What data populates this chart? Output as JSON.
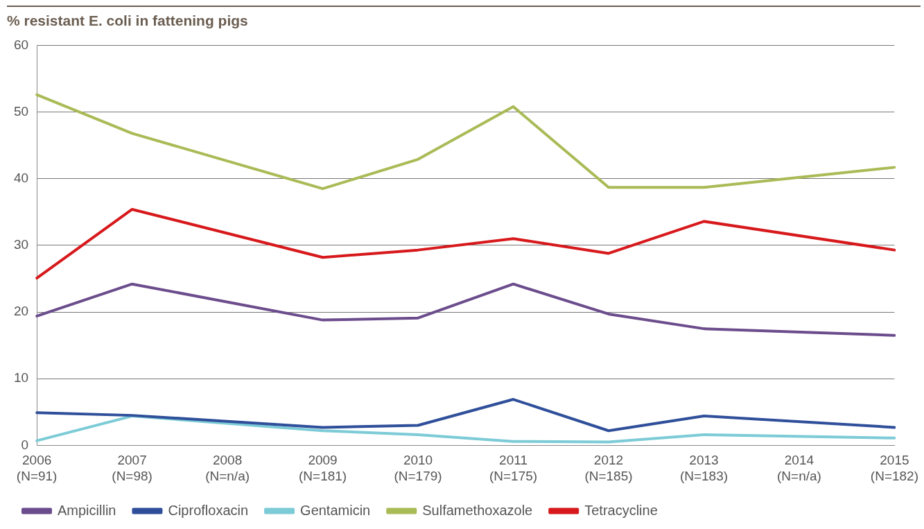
{
  "chart_data": {
    "type": "line",
    "title": "% resistant E. coli in fattening pigs",
    "categories": [
      "2006\n(N=91)",
      "2007\n(N=98)",
      "2008\n(N=n/a)",
      "2009\n(N=181)",
      "2010\n(N=179)",
      "2011\n(N=175)",
      "2012\n(N=185)",
      "2013\n(N=183)",
      "2014\n(N=n/a)",
      "2015\n(N=182)"
    ],
    "series": [
      {
        "name": "Ampicillin",
        "color": "#6b4c8c",
        "values": [
          19.4,
          24.2,
          null,
          18.8,
          19.1,
          24.2,
          19.7,
          17.5,
          null,
          16.5
        ]
      },
      {
        "name": "Ciprofloxacin",
        "color": "#2f4f9a",
        "values": [
          4.9,
          4.5,
          null,
          2.7,
          3.0,
          6.9,
          2.2,
          4.4,
          null,
          2.7
        ]
      },
      {
        "name": "Gentamicin",
        "color": "#7ccbd6",
        "values": [
          0.7,
          4.4,
          null,
          2.2,
          1.6,
          0.6,
          0.5,
          1.6,
          null,
          1.1
        ]
      },
      {
        "name": "Sulfamethoxazole",
        "color": "#a9bb56",
        "values": [
          52.6,
          46.8,
          null,
          38.5,
          42.9,
          50.8,
          38.7,
          38.7,
          null,
          41.7
        ]
      },
      {
        "name": "Tetracycline",
        "color": "#d7191c",
        "values": [
          25.1,
          35.4,
          null,
          28.2,
          29.3,
          31.0,
          28.8,
          33.6,
          null,
          29.3
        ]
      }
    ],
    "ylim": [
      0,
      60
    ],
    "yticks": [
      0,
      10,
      20,
      30,
      40,
      50,
      60
    ],
    "grid": "y",
    "legend": "bottom",
    "marker": "none",
    "line_style": "solid"
  }
}
